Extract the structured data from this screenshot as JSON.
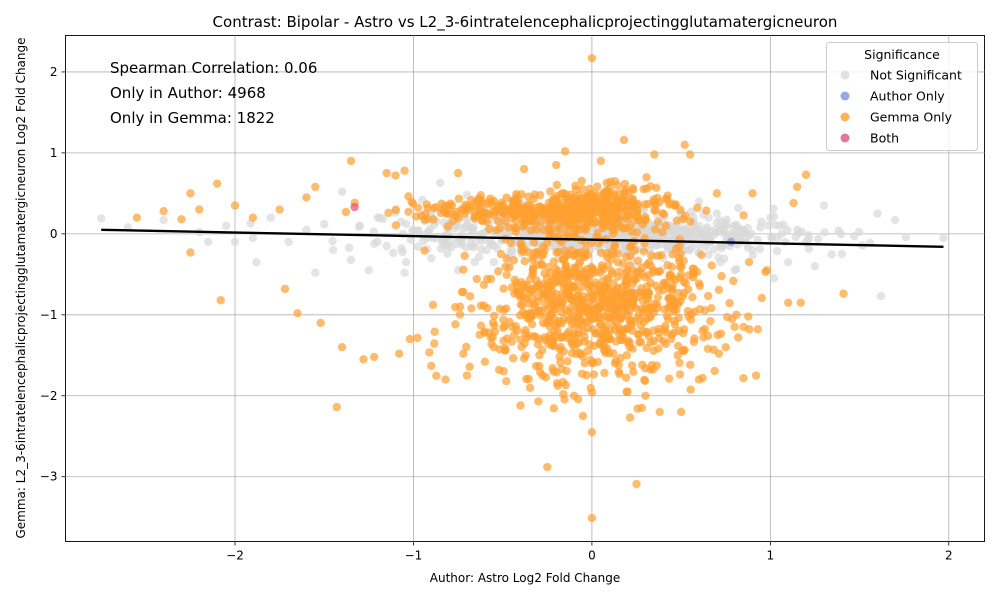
{
  "chart_data": {
    "type": "scatter",
    "title": "Contrast: Bipolar - Astro vs L2_3-6intratelencephalicprojectingglutamatergicneuron",
    "xlabel": "Author: Astro Log2 Fold Change",
    "ylabel": "Gemma: L2_3-6intratelencephalicprojectingglutamatergicneuron Log2 Fold Change",
    "xlim": [
      -2.95,
      2.2
    ],
    "ylim": [
      -3.8,
      2.45
    ],
    "x_ticks": [
      -2,
      -1,
      0,
      1,
      2
    ],
    "y_ticks": [
      -3,
      -2,
      -1,
      0,
      1,
      2
    ],
    "grid": true,
    "annotations": [
      "Spearman Correlation: 0.06",
      "Only in Author: 4968",
      "Only in Gemma: 1822"
    ],
    "legend": {
      "title": "Significance",
      "placement": "top-right",
      "entries": [
        {
          "label": "Not Significant",
          "color": "#d9d9d9"
        },
        {
          "label": "Author Only",
          "color": "#7a94dd"
        },
        {
          "label": "Gemma Only",
          "color": "#ffa030"
        },
        {
          "label": "Both",
          "color": "#dd5577"
        }
      ]
    },
    "regression_line": {
      "x": [
        -2.75,
        1.97
      ],
      "y": [
        0.05,
        -0.16
      ]
    },
    "series": [
      {
        "name": "Not Significant",
        "color": "#d9d9d9",
        "points": [
          [
            -2.75,
            0.19
          ],
          [
            -2.6,
            0.08
          ],
          [
            -2.4,
            0.17
          ],
          [
            -2.2,
            0.02
          ],
          [
            -2.15,
            -0.1
          ],
          [
            -2.05,
            0.1
          ],
          [
            -2.0,
            -0.1
          ],
          [
            -1.9,
            -0.05
          ],
          [
            -1.88,
            -0.35
          ],
          [
            -1.8,
            0.2
          ],
          [
            -1.7,
            -0.1
          ],
          [
            -1.6,
            0.05
          ],
          [
            -1.55,
            -0.48
          ],
          [
            -1.5,
            0.12
          ],
          [
            -1.45,
            -0.2
          ],
          [
            -1.4,
            0.52
          ],
          [
            -1.35,
            -0.32
          ],
          [
            -1.3,
            0.1
          ],
          [
            -1.25,
            -0.45
          ],
          [
            -1.2,
            0.2
          ],
          [
            -1.15,
            -0.15
          ],
          [
            -1.1,
            0.3
          ],
          [
            -1.05,
            -0.48
          ],
          [
            -1.0,
            0.05
          ],
          [
            -0.95,
            0.42
          ],
          [
            -0.9,
            -0.3
          ],
          [
            -0.85,
            0.63
          ],
          [
            -0.8,
            0.1
          ],
          [
            -0.75,
            -0.45
          ],
          [
            -0.7,
            0.48
          ],
          [
            -0.65,
            -0.1
          ],
          [
            -0.6,
            0.3
          ],
          [
            -0.55,
            -0.35
          ],
          [
            -0.5,
            0.15
          ],
          [
            -0.45,
            -0.25
          ],
          [
            -0.4,
            0.4
          ],
          [
            -0.35,
            0.05
          ],
          [
            -0.3,
            -0.3
          ],
          [
            -0.25,
            0.25
          ],
          [
            -0.2,
            -0.05
          ],
          [
            -0.15,
            0.35
          ],
          [
            -0.1,
            -0.2
          ],
          [
            -0.05,
            0.1
          ],
          [
            0.0,
            -0.15
          ],
          [
            0.05,
            0.3
          ],
          [
            0.1,
            -0.05
          ],
          [
            0.15,
            0.2
          ],
          [
            0.2,
            -0.25
          ],
          [
            0.25,
            0.15
          ],
          [
            0.3,
            -0.1
          ],
          [
            0.35,
            0.35
          ],
          [
            0.4,
            -0.3
          ],
          [
            0.45,
            0.05
          ],
          [
            0.5,
            0.25
          ],
          [
            0.55,
            -0.2
          ],
          [
            0.6,
            0.4
          ],
          [
            0.65,
            -0.1
          ],
          [
            0.7,
            0.25
          ],
          [
            0.72,
            -0.35
          ],
          [
            0.75,
            0.1
          ],
          [
            0.8,
            -0.45
          ],
          [
            0.82,
            0.32
          ],
          [
            0.85,
            0.05
          ],
          [
            0.9,
            -0.2
          ],
          [
            0.95,
            0.15
          ],
          [
            1.0,
            0.2
          ],
          [
            1.02,
            -0.55
          ],
          [
            1.05,
            0.1
          ],
          [
            1.1,
            -0.35
          ],
          [
            1.15,
            0.05
          ],
          [
            1.2,
            -0.1
          ],
          [
            1.25,
            -0.4
          ],
          [
            1.3,
            0.35
          ],
          [
            1.4,
            -0.25
          ],
          [
            1.47,
            -0.03
          ],
          [
            1.6,
            0.25
          ],
          [
            1.62,
            -0.77
          ],
          [
            1.7,
            0.17
          ],
          [
            1.97,
            -0.05
          ]
        ]
      },
      {
        "name": "Author Only",
        "color": "#7a94dd",
        "points": [
          [
            0.78,
            -0.1
          ]
        ]
      },
      {
        "name": "Gemma Only",
        "color": "#ffa030",
        "points": [
          [
            -2.55,
            0.2
          ],
          [
            -2.4,
            0.28
          ],
          [
            -2.3,
            0.18
          ],
          [
            -2.25,
            0.5
          ],
          [
            -2.25,
            -0.23
          ],
          [
            -2.2,
            0.3
          ],
          [
            -2.1,
            0.62
          ],
          [
            -2.08,
            -0.82
          ],
          [
            -2.0,
            0.35
          ],
          [
            -1.9,
            0.2
          ],
          [
            -1.75,
            0.3
          ],
          [
            -1.72,
            -0.68
          ],
          [
            -1.65,
            -0.98
          ],
          [
            -1.6,
            0.45
          ],
          [
            -1.55,
            0.58
          ],
          [
            -1.52,
            -1.1
          ],
          [
            -1.43,
            -2.14
          ],
          [
            -1.4,
            -1.4
          ],
          [
            -1.35,
            0.9
          ],
          [
            -1.28,
            -1.55
          ],
          [
            -1.22,
            -1.52
          ],
          [
            -1.15,
            0.75
          ],
          [
            -1.1,
            0.72
          ],
          [
            -1.08,
            -1.48
          ],
          [
            -1.05,
            0.78
          ],
          [
            -1.02,
            -1.3
          ],
          [
            -0.9,
            -1.63
          ],
          [
            -0.82,
            -1.8
          ],
          [
            -0.75,
            0.75
          ],
          [
            -0.72,
            -1.48
          ],
          [
            -0.7,
            -1.75
          ],
          [
            -0.6,
            -1.58
          ],
          [
            -0.52,
            -1.68
          ],
          [
            -0.48,
            -1.82
          ],
          [
            -0.4,
            -2.12
          ],
          [
            -0.38,
            0.8
          ],
          [
            -0.3,
            -2.07
          ],
          [
            -0.25,
            -2.88
          ],
          [
            -0.2,
            0.85
          ],
          [
            -0.16,
            -1.98
          ],
          [
            -0.15,
            1.02
          ],
          [
            -0.1,
            -2.0
          ],
          [
            -0.05,
            -2.25
          ],
          [
            0.0,
            -2.45
          ],
          [
            0.0,
            2.17
          ],
          [
            0.0,
            -3.51
          ],
          [
            0.05,
            0.9
          ],
          [
            0.18,
            1.16
          ],
          [
            0.2,
            -1.95
          ],
          [
            0.25,
            -3.09
          ],
          [
            0.28,
            -2.15
          ],
          [
            0.3,
            -2.0
          ],
          [
            0.35,
            0.98
          ],
          [
            0.38,
            -2.2
          ],
          [
            0.5,
            -2.2
          ],
          [
            0.52,
            1.1
          ],
          [
            0.55,
            0.98
          ],
          [
            0.6,
            -1.8
          ],
          [
            0.62,
            -1.78
          ],
          [
            0.65,
            -1.42
          ],
          [
            0.7,
            0.5
          ],
          [
            0.75,
            -1.4
          ],
          [
            0.8,
            -1.15
          ],
          [
            0.82,
            -1.28
          ],
          [
            0.85,
            -1.15
          ],
          [
            0.9,
            0.5
          ],
          [
            0.92,
            -1.75
          ],
          [
            0.93,
            -1.18
          ],
          [
            0.98,
            -0.45
          ],
          [
            1.1,
            -0.85
          ],
          [
            1.13,
            0.38
          ],
          [
            1.15,
            0.58
          ],
          [
            1.17,
            -0.85
          ],
          [
            1.2,
            0.73
          ],
          [
            1.41,
            -0.74
          ]
        ],
        "dense_clusters": [
          {
            "x_center": 0.0,
            "x_spread": 0.55,
            "y_center": -0.85,
            "y_spread": 0.45,
            "count": 900
          },
          {
            "x_center": 0.0,
            "x_spread": 0.4,
            "y_center": 0.3,
            "y_spread": 0.12,
            "count": 350
          },
          {
            "x_center": -0.5,
            "x_spread": 0.5,
            "y_center": 0.3,
            "y_spread": 0.08,
            "count": 180
          }
        ]
      },
      {
        "name": "Both",
        "color": "#dd5577",
        "points": [
          [
            -1.33,
            0.33
          ]
        ]
      }
    ]
  }
}
